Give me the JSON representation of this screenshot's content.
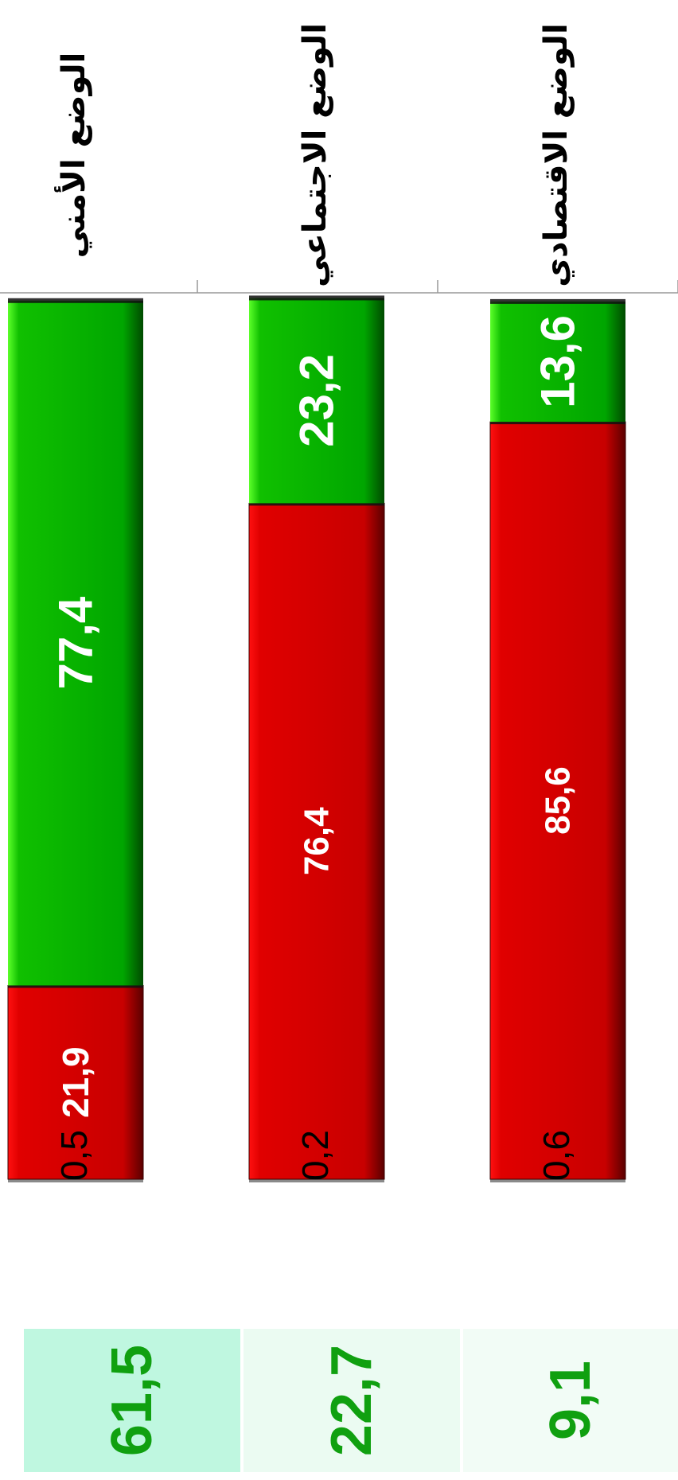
{
  "colors": {
    "red": "#cc0000",
    "green": "#00a800",
    "box_text": "#10a010",
    "box_backgrounds": [
      "#bff7e0",
      "#ebfbf2",
      "#f2fcf6"
    ]
  },
  "chart_data": {
    "type": "bar",
    "stacked": true,
    "orientation": "rotated-90-clockwise",
    "categories": [
      "الوضع الأمني",
      "الوضع الاجتماعي",
      "الوضع الاقتصادي"
    ],
    "series": [
      {
        "color": "#cc0000",
        "values": [
          21.9,
          76.4,
          85.6
        ],
        "labels": [
          "21,9",
          "76,4",
          "85,6"
        ]
      },
      {
        "color": "#00a800",
        "values": [
          77.4,
          23.2,
          13.6
        ],
        "labels": [
          "77,4",
          "23,2",
          "13,6"
        ]
      }
    ],
    "remainder_labels": [
      "0,5",
      "0,2",
      "0,6"
    ],
    "side_values": [
      61.5,
      22.7,
      9.1
    ],
    "side_labels": [
      "61,5",
      "22,7",
      "9,1"
    ],
    "ylim": [
      0,
      100
    ]
  }
}
